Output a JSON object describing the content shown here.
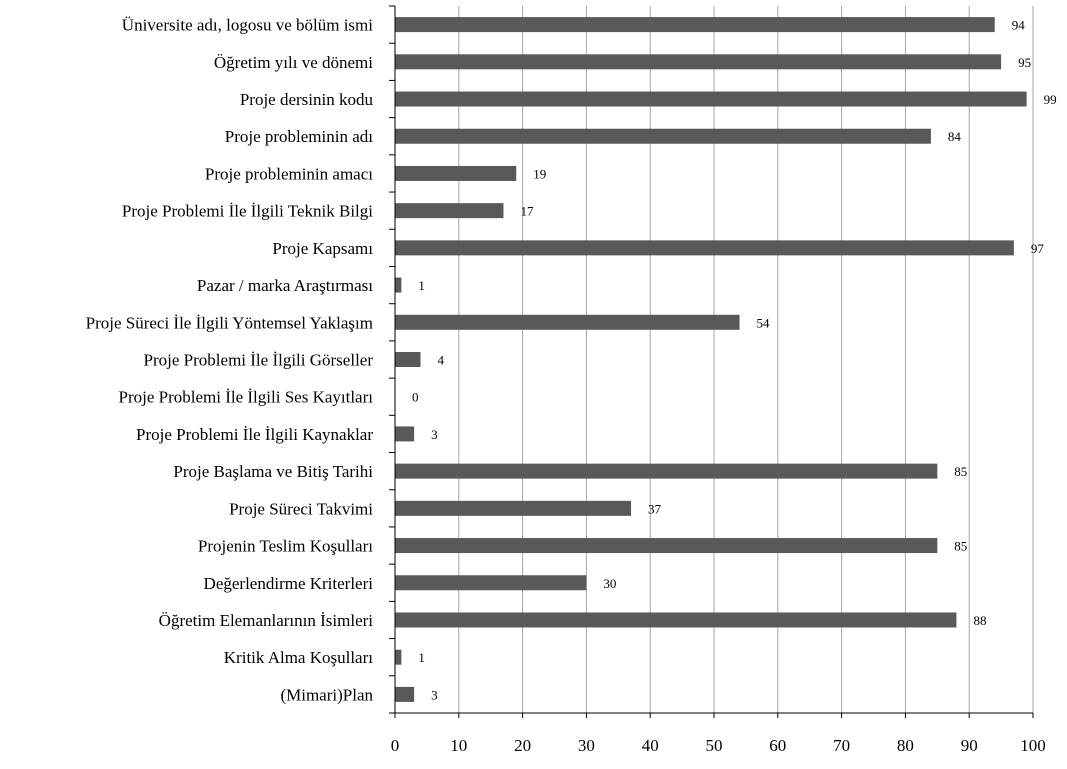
{
  "chart_data": {
    "type": "bar",
    "orientation": "horizontal",
    "categories": [
      "Üniversite adı, logosu ve bölüm ismi",
      "Öğretim yılı ve dönemi",
      "Proje dersinin kodu",
      "Proje probleminin adı",
      "Proje probleminin amacı",
      "Proje Problemi İle İlgili Teknik Bilgi",
      "Proje Kapsamı",
      "Pazar / marka Araştırması",
      "Proje Süreci İle İlgili Yöntemsel Yaklaşım",
      "Proje Problemi İle İlgili Görseller",
      "Proje Problemi İle İlgili Ses Kayıtları",
      "Proje Problemi İle İlgili Kaynaklar",
      "Proje Başlama ve Bitiş Tarihi",
      "Proje Süreci Takvimi",
      "Projenin Teslim Koşulları",
      "Değerlendirme Kriterleri",
      "Öğretim Elemanlarının İsimleri",
      "Kritik Alma Koşulları",
      "(Mimari)Plan"
    ],
    "values": [
      94,
      95,
      99,
      84,
      19,
      17,
      97,
      1,
      54,
      4,
      0,
      3,
      85,
      37,
      85,
      30,
      88,
      1,
      3
    ],
    "data_labels": [
      "94",
      "95",
      "99",
      "84",
      "19",
      "17",
      "97",
      "1",
      "54",
      "4",
      "0",
      "3",
      "85",
      "37",
      "85",
      "30",
      "88",
      "1",
      "3"
    ],
    "xlim": [
      0,
      100
    ],
    "xticks": [
      0,
      10,
      20,
      30,
      40,
      50,
      60,
      70,
      80,
      90,
      100
    ],
    "xtick_labels": [
      "0",
      "10",
      "20",
      "30",
      "40",
      "50",
      "60",
      "70",
      "80",
      "90",
      "100"
    ],
    "grid": true,
    "legend": false,
    "title": "",
    "xlabel": "",
    "ylabel": "",
    "bar_color": "#595959",
    "grid_color": "#a6a6a6"
  }
}
